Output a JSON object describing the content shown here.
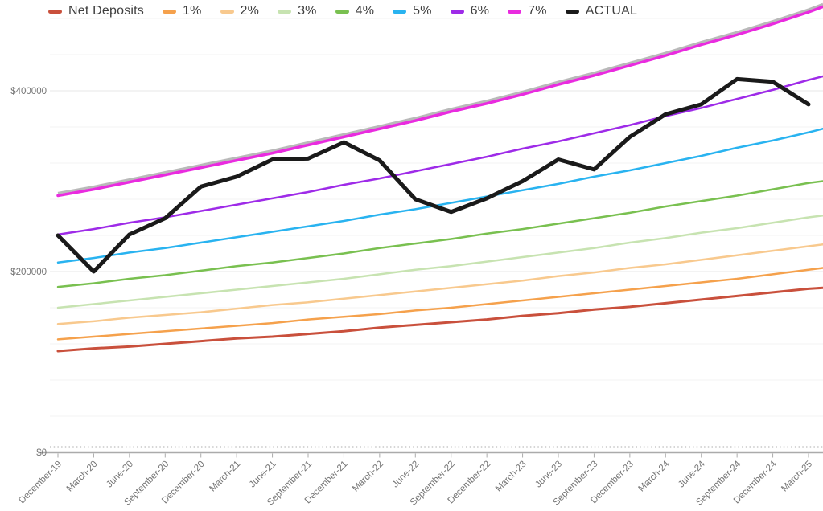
{
  "chart_data": {
    "type": "line",
    "title": "",
    "legend_position": "top",
    "grid": true,
    "x_categories": [
      "December-19",
      "March-20",
      "June-20",
      "September-20",
      "December-20",
      "March-21",
      "June-21",
      "September-21",
      "December-21",
      "March-22",
      "June-22",
      "September-22",
      "December-22",
      "March-23",
      "June-23",
      "September-23",
      "December-23",
      "March-24",
      "June-24",
      "September-24",
      "December-24",
      "March-25"
    ],
    "y_axis": {
      "tick_labels": [
        "$0",
        "$200000",
        "$400000"
      ],
      "tick_values": [
        0,
        200000,
        400000
      ],
      "minor_gridline_step": 40000,
      "max_gridline": 480000,
      "range": [
        0,
        493000
      ]
    },
    "series": [
      {
        "name": "Net Deposits",
        "color": "#C9503C",
        "stroke_width": 3,
        "edge_value": 182000,
        "values": [
          112000,
          115000,
          117000,
          120000,
          123000,
          126000,
          128000,
          131000,
          134000,
          138000,
          141000,
          144000,
          147000,
          151000,
          154000,
          158000,
          161000,
          165000,
          169000,
          173000,
          177000,
          181000
        ]
      },
      {
        "name": "1%",
        "color": "#F5A14C",
        "stroke_width": 2.5,
        "edge_value": 204000,
        "values": [
          125000,
          128000,
          131000,
          134000,
          137000,
          140000,
          143000,
          147000,
          150000,
          153000,
          157000,
          160000,
          164000,
          168000,
          172000,
          176000,
          180000,
          184000,
          188000,
          192000,
          197000,
          202000
        ]
      },
      {
        "name": "2%",
        "color": "#F8C98E",
        "stroke_width": 2.5,
        "edge_value": 230000,
        "values": [
          142000,
          145000,
          149000,
          152000,
          155000,
          159000,
          163000,
          166000,
          170000,
          174000,
          178000,
          182000,
          186000,
          190000,
          195000,
          199000,
          204000,
          208000,
          213000,
          218000,
          223000,
          228000
        ]
      },
      {
        "name": "3%",
        "color": "#C7E3B1",
        "stroke_width": 2.5,
        "edge_value": 262000,
        "values": [
          160000,
          164000,
          168000,
          172000,
          176000,
          180000,
          184000,
          188000,
          192000,
          197000,
          202000,
          206000,
          211000,
          216000,
          221000,
          226000,
          232000,
          237000,
          243000,
          248000,
          254000,
          260000
        ]
      },
      {
        "name": "4%",
        "color": "#79C050",
        "stroke_width": 2.5,
        "edge_value": 300000,
        "values": [
          183000,
          187000,
          192000,
          196000,
          201000,
          206000,
          210000,
          215000,
          220000,
          226000,
          231000,
          236000,
          242000,
          247000,
          253000,
          259000,
          265000,
          272000,
          278000,
          284000,
          291000,
          298000
        ]
      },
      {
        "name": "5%",
        "color": "#29B3F0",
        "stroke_width": 2.5,
        "edge_value": 358000,
        "values": [
          210000,
          215000,
          221000,
          226000,
          232000,
          238000,
          244000,
          250000,
          256000,
          263000,
          269000,
          276000,
          283000,
          290000,
          297000,
          305000,
          312000,
          320000,
          328000,
          337000,
          345000,
          354000
        ]
      },
      {
        "name": "6%",
        "color": "#9E2BE8",
        "stroke_width": 2.5,
        "edge_value": 416000,
        "values": [
          241000,
          247000,
          254000,
          260000,
          267000,
          274000,
          281000,
          288000,
          296000,
          303000,
          311000,
          319000,
          327000,
          336000,
          344000,
          353000,
          362000,
          372000,
          381000,
          391000,
          401000,
          412000
        ]
      },
      {
        "name": "7%",
        "color": "#E92BDF",
        "stroke_width": 3.5,
        "shadow": true,
        "edge_value": 493000,
        "values": [
          284000,
          291000,
          299000,
          307000,
          315000,
          323000,
          331000,
          340000,
          349000,
          358000,
          367000,
          377000,
          386000,
          396000,
          407000,
          417000,
          428000,
          439000,
          451000,
          462000,
          474000,
          487000
        ]
      },
      {
        "name": "ACTUAL",
        "color": "#1A1A1A",
        "stroke_width": 5,
        "values": [
          240000,
          200000,
          241000,
          259000,
          294000,
          305000,
          324000,
          325000,
          343000,
          323000,
          280000,
          266000,
          281000,
          300000,
          324000,
          313000,
          349000,
          374000,
          385000,
          413000,
          410000,
          385000
        ]
      }
    ]
  },
  "style": {
    "background": "#FFFFFF",
    "axis_line_color": "#ABABAB",
    "major_gridline_color": "#E7E7E7",
    "minor_gridline_color": "#F3F3F3",
    "dotted_line_color": "#C9C9C9",
    "axis_label_color": "#757575",
    "legend_text_color": "#3F3F3F",
    "shadow_color": "#9B9B9B"
  }
}
